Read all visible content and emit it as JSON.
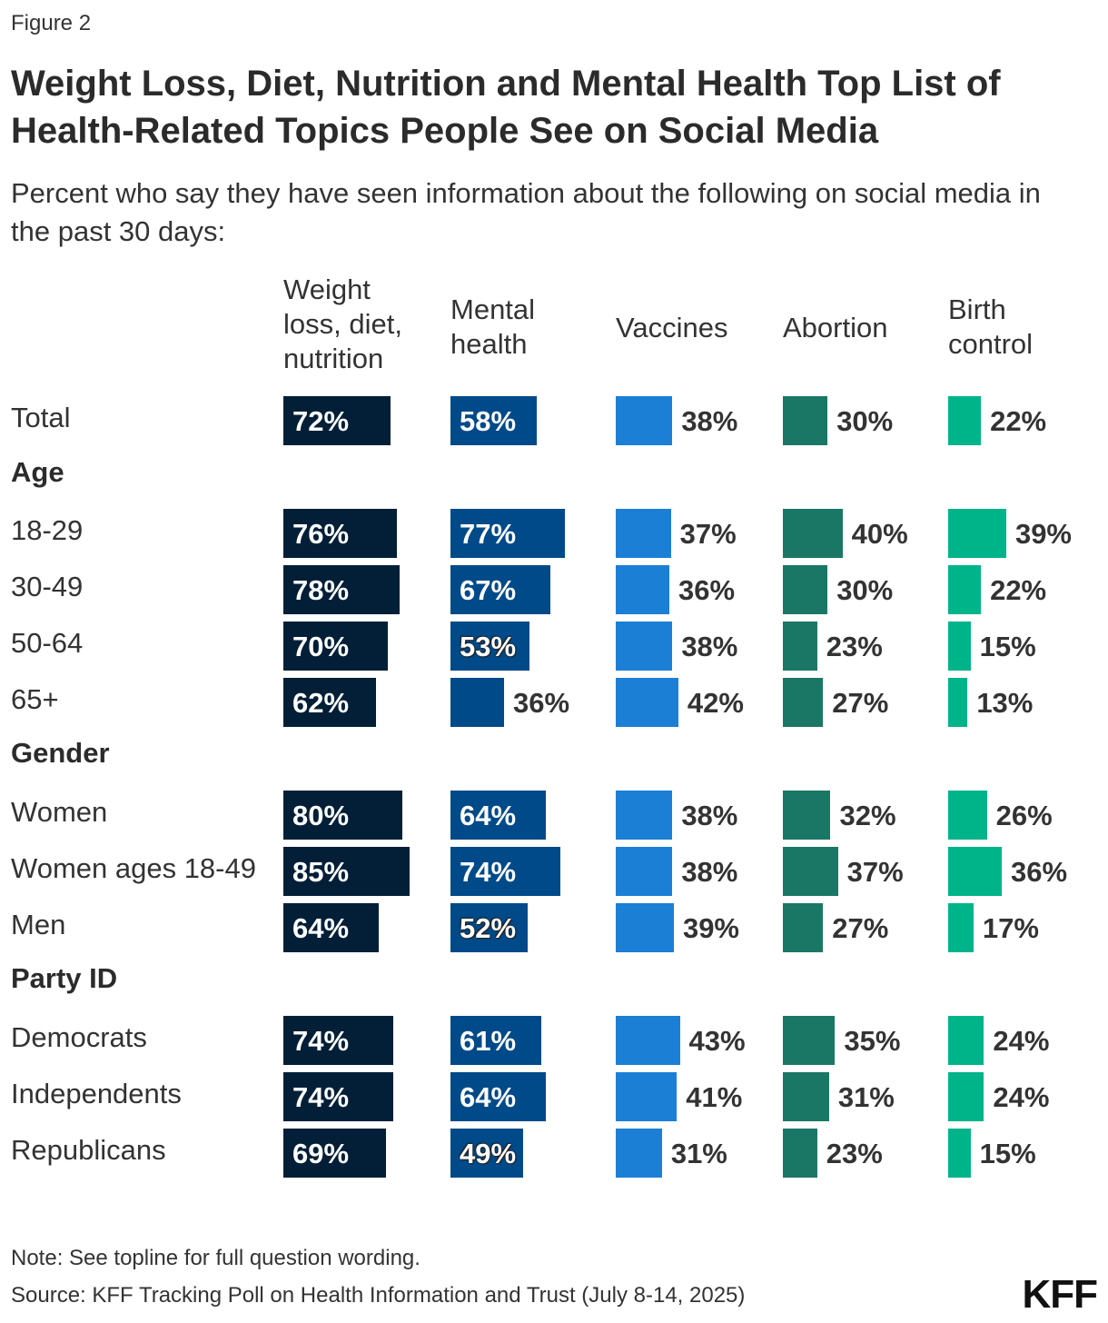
{
  "figure_label": "Figure 2",
  "chart_data": {
    "type": "bar",
    "title": "Weight Loss, Diet, Nutrition and Mental Health Top List of Health-Related Topics People See on Social Media",
    "subtitle": "Percent who say they have seen information about the following on social media in the past 30 days:",
    "columns": [
      "Weight\nloss, diet,\nnutrition",
      "Mental\nhealth",
      "Vaccines",
      "Abortion",
      "Birth\ncontrol"
    ],
    "colors": [
      "#021f37",
      "#004a89",
      "#1b7fd6",
      "#1b7765",
      "#00b48a"
    ],
    "rows": [
      {
        "label": "Total",
        "values": [
          72,
          58,
          38,
          30,
          22
        ]
      },
      {
        "group": "Age"
      },
      {
        "label": "18-29",
        "values": [
          76,
          77,
          37,
          40,
          39
        ]
      },
      {
        "label": "30-49",
        "values": [
          78,
          67,
          36,
          30,
          22
        ]
      },
      {
        "label": "50-64",
        "values": [
          70,
          53,
          38,
          23,
          15
        ]
      },
      {
        "label": "65+",
        "values": [
          62,
          36,
          42,
          27,
          13
        ]
      },
      {
        "group": "Gender"
      },
      {
        "label": "Women",
        "values": [
          80,
          64,
          38,
          32,
          26
        ]
      },
      {
        "label": "Women ages 18-49",
        "values": [
          85,
          74,
          38,
          37,
          36
        ]
      },
      {
        "label": "Men",
        "values": [
          64,
          52,
          39,
          27,
          17
        ]
      },
      {
        "group": "Party ID"
      },
      {
        "label": "Democrats",
        "values": [
          74,
          61,
          43,
          35,
          24
        ]
      },
      {
        "label": "Independents",
        "values": [
          74,
          64,
          41,
          31,
          24
        ]
      },
      {
        "label": "Republicans",
        "values": [
          69,
          49,
          31,
          23,
          15
        ]
      }
    ],
    "value_suffix": "%"
  },
  "note": "Note: See topline for full question wording.",
  "source": "Source: KFF Tracking Poll on Health Information and Trust (July 8-14, 2025)",
  "logo": "KFF"
}
